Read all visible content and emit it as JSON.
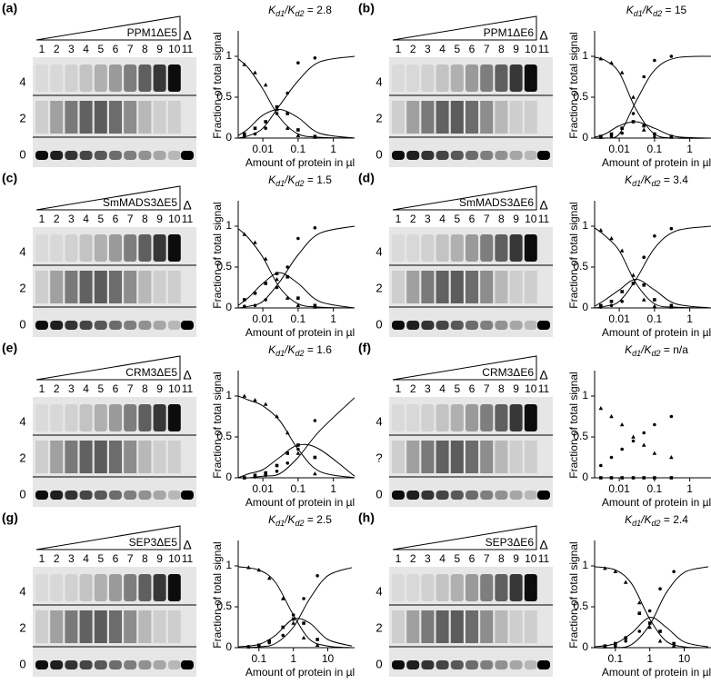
{
  "lanes": [
    "1",
    "2",
    "3",
    "4",
    "5",
    "6",
    "7",
    "8",
    "9",
    "10",
    "11"
  ],
  "delta": "Δ",
  "ylabel": "Fraction of total signal",
  "xlabel": "Amount of protein in µl",
  "ratio_parts": [
    "K",
    "d1",
    "/K",
    "d2",
    " = "
  ],
  "panels": [
    {
      "label": "(a)",
      "gel": {
        "protein": "PPM1ΔE5",
        "y_labels": [
          "4",
          "2",
          "0"
        ]
      },
      "chart": {
        "type": "scatter",
        "log_x": true,
        "ratio": "2.8",
        "xlim": [
          0.002,
          4
        ],
        "xticks": [
          0.01,
          0.1,
          1
        ],
        "ylim": [
          0,
          1.2
        ],
        "yticks": [
          0,
          0.5,
          1
        ],
        "x": [
          0.003,
          0.006,
          0.012,
          0.025,
          0.05,
          0.1,
          0.3
        ],
        "curve_x": [
          0.002,
          0.004,
          0.01,
          0.03,
          0.1,
          0.4,
          4
        ],
        "series": [
          {
            "marker": "triangle",
            "values": [
              0.9,
              0.8,
              0.65,
              0.35,
              0.12,
              0.03,
              0.01
            ],
            "curve": [
              0.97,
              0.85,
              0.6,
              0.25,
              0.05,
              0.01,
              0
            ]
          },
          {
            "marker": "square",
            "values": [
              0.05,
              0.12,
              0.2,
              0.38,
              0.3,
              0.1,
              0.02
            ],
            "curve": [
              0.03,
              0.12,
              0.28,
              0.35,
              0.25,
              0.06,
              0
            ]
          },
          {
            "marker": "circle",
            "values": [
              0.02,
              0.05,
              0.12,
              0.3,
              0.55,
              0.92,
              0.98
            ],
            "curve": [
              0,
              0.03,
              0.12,
              0.4,
              0.7,
              0.93,
              1
            ]
          }
        ]
      }
    },
    {
      "label": "(b)",
      "gel": {
        "protein": "PPM1ΔE6",
        "y_labels": [
          "4",
          "2",
          "0"
        ]
      },
      "chart": {
        "type": "scatter",
        "log_x": true,
        "ratio": "15",
        "xlim": [
          0.002,
          4
        ],
        "xticks": [
          0.01,
          0.1,
          1
        ],
        "ylim": [
          0,
          1.2
        ],
        "yticks": [
          0,
          0.5,
          1
        ],
        "x": [
          0.003,
          0.006,
          0.012,
          0.025,
          0.05,
          0.1,
          0.3
        ],
        "curve_x": [
          0.002,
          0.004,
          0.01,
          0.03,
          0.1,
          0.4,
          4
        ],
        "series": [
          {
            "marker": "triangle",
            "values": [
              0.97,
              0.92,
              0.8,
              0.5,
              0.1,
              0.02,
              0.01
            ],
            "curve": [
              0.99,
              0.95,
              0.8,
              0.35,
              0.05,
              0,
              0
            ]
          },
          {
            "marker": "square",
            "values": [
              0.02,
              0.05,
              0.12,
              0.2,
              0.15,
              0.05,
              0.02
            ],
            "curve": [
              0.01,
              0.05,
              0.15,
              0.2,
              0.12,
              0.02,
              0
            ]
          },
          {
            "marker": "circle",
            "values": [
              0.01,
              0.02,
              0.06,
              0.3,
              0.75,
              0.95,
              1
            ],
            "curve": [
              0,
              0,
              0.05,
              0.45,
              0.83,
              0.98,
              1
            ]
          }
        ]
      }
    },
    {
      "label": "(c)",
      "gel": {
        "protein": "SmMADS3ΔE5",
        "y_labels": [
          "4",
          "2",
          "0"
        ]
      },
      "chart": {
        "type": "scatter",
        "log_x": true,
        "ratio": "1.5",
        "xlim": [
          0.002,
          4
        ],
        "xticks": [
          0.01,
          0.1,
          1
        ],
        "ylim": [
          0,
          1.2
        ],
        "yticks": [
          0,
          0.5,
          1
        ],
        "x": [
          0.003,
          0.006,
          0.012,
          0.025,
          0.05,
          0.1,
          0.3
        ],
        "curve_x": [
          0.002,
          0.004,
          0.01,
          0.03,
          0.1,
          0.4,
          4
        ],
        "series": [
          {
            "marker": "triangle",
            "values": [
              0.9,
              0.8,
              0.6,
              0.35,
              0.12,
              0.03,
              0.01
            ],
            "curve": [
              0.97,
              0.85,
              0.62,
              0.25,
              0.05,
              0.01,
              0
            ]
          },
          {
            "marker": "square",
            "values": [
              0.1,
              0.18,
              0.3,
              0.42,
              0.38,
              0.12,
              0.03
            ],
            "curve": [
              0.03,
              0.13,
              0.3,
              0.43,
              0.3,
              0.08,
              0
            ]
          },
          {
            "marker": "circle",
            "values": [
              0.02,
              0.03,
              0.1,
              0.25,
              0.5,
              0.85,
              0.98
            ],
            "curve": [
              0,
              0.02,
              0.08,
              0.32,
              0.65,
              0.91,
              1
            ]
          }
        ]
      }
    },
    {
      "label": "(d)",
      "gel": {
        "protein": "SmMADS3ΔE6",
        "y_labels": [
          "4",
          "2",
          "0"
        ]
      },
      "chart": {
        "type": "scatter",
        "log_x": true,
        "ratio": "3.4",
        "xlim": [
          0.002,
          4
        ],
        "xticks": [
          0.01,
          0.1,
          1
        ],
        "ylim": [
          0,
          1.2
        ],
        "yticks": [
          0,
          0.5,
          1
        ],
        "x": [
          0.003,
          0.006,
          0.012,
          0.025,
          0.05,
          0.1,
          0.3
        ],
        "curve_x": [
          0.002,
          0.004,
          0.01,
          0.03,
          0.1,
          0.4,
          4
        ],
        "series": [
          {
            "marker": "triangle",
            "values": [
              0.95,
              0.85,
              0.7,
              0.4,
              0.1,
              0.02,
              0.01
            ],
            "curve": [
              0.98,
              0.88,
              0.7,
              0.3,
              0.05,
              0.01,
              0
            ]
          },
          {
            "marker": "square",
            "values": [
              0.03,
              0.08,
              0.2,
              0.3,
              0.28,
              0.1,
              0.03
            ],
            "curve": [
              0.02,
              0.1,
              0.22,
              0.35,
              0.22,
              0.05,
              0
            ]
          },
          {
            "marker": "circle",
            "values": [
              0.01,
              0.03,
              0.08,
              0.3,
              0.62,
              0.88,
              0.97
            ],
            "curve": [
              0,
              0.02,
              0.08,
              0.35,
              0.73,
              0.94,
              1
            ]
          }
        ]
      }
    },
    {
      "label": "(e)",
      "gel": {
        "protein": "CRM3ΔE5",
        "y_labels": [
          "4",
          "2",
          "0"
        ]
      },
      "chart": {
        "type": "scatter",
        "log_x": true,
        "ratio": "1.6",
        "xlim": [
          0.002,
          4
        ],
        "xticks": [
          0.01,
          0.1,
          1
        ],
        "ylim": [
          0,
          1.2
        ],
        "yticks": [
          0,
          0.5,
          1
        ],
        "x": [
          0.003,
          0.006,
          0.012,
          0.025,
          0.05,
          0.1,
          0.3
        ],
        "curve_x": [
          0.002,
          0.004,
          0.01,
          0.03,
          0.1,
          0.4,
          4
        ],
        "series": [
          {
            "marker": "triangle",
            "values": [
              1,
              0.95,
              0.9,
              0.75,
              0.55,
              0.3,
              0.05
            ],
            "curve": [
              1,
              0.95,
              0.88,
              0.7,
              0.35,
              0.08,
              0
            ]
          },
          {
            "marker": "square",
            "values": [
              0,
              0.03,
              0.06,
              0.15,
              0.3,
              0.4,
              0.25
            ],
            "curve": [
              0,
              0.05,
              0.1,
              0.25,
              0.4,
              0.35,
              0.02
            ]
          },
          {
            "marker": "circle",
            "values": [
              0,
              0.01,
              0.03,
              0.08,
              0.18,
              0.35,
              0.7
            ],
            "curve": [
              0,
              0,
              0.02,
              0.05,
              0.25,
              0.57,
              0.98
            ]
          }
        ]
      }
    },
    {
      "label": "(f)",
      "gel": {
        "protein": "CRM3ΔE6",
        "y_labels": [
          "4",
          "?",
          "0"
        ]
      },
      "chart": {
        "type": "scatter",
        "log_x": true,
        "ratio": "n/a",
        "xlim": [
          0.002,
          4
        ],
        "xticks": [
          0.01,
          0.1,
          1
        ],
        "ylim": [
          0,
          1.2
        ],
        "yticks": [
          0,
          0.5,
          1
        ],
        "x": [
          0.003,
          0.006,
          0.012,
          0.025,
          0.05,
          0.1,
          0.3
        ],
        "series": [
          {
            "marker": "triangle",
            "values": [
              0.85,
              0.75,
              0.65,
              0.5,
              0.4,
              0.3,
              0.25
            ]
          },
          {
            "marker": "square",
            "values": [
              0,
              0,
              0,
              0,
              0,
              0,
              0
            ]
          },
          {
            "marker": "circle",
            "values": [
              0.15,
              0.25,
              0.35,
              0.45,
              0.55,
              0.65,
              0.75
            ]
          }
        ]
      }
    },
    {
      "label": "(g)",
      "gel": {
        "protein": "SEP3ΔE5",
        "y_labels": [
          "4",
          "2",
          "0"
        ]
      },
      "chart": {
        "type": "scatter",
        "log_x": true,
        "ratio": "2.5",
        "xlim": [
          0.025,
          60
        ],
        "xticks": [
          0.1,
          1,
          10
        ],
        "ylim": [
          0,
          1.2
        ],
        "yticks": [
          0,
          0.5,
          1
        ],
        "x": [
          0.05,
          0.1,
          0.2,
          0.5,
          1,
          2,
          5
        ],
        "curve_x": [
          0.025,
          0.1,
          0.3,
          1,
          3,
          10,
          50
        ],
        "series": [
          {
            "marker": "triangle",
            "values": [
              0.98,
              0.95,
              0.85,
              0.6,
              0.3,
              0.12,
              0.03
            ],
            "curve": [
              0.99,
              0.95,
              0.8,
              0.4,
              0.1,
              0.02,
              0
            ]
          },
          {
            "marker": "square",
            "values": [
              0.01,
              0.03,
              0.08,
              0.25,
              0.35,
              0.3,
              0.1
            ],
            "curve": [
              0.01,
              0.04,
              0.15,
              0.35,
              0.3,
              0.1,
              0.02
            ]
          },
          {
            "marker": "circle",
            "values": [
              0.01,
              0.02,
              0.06,
              0.15,
              0.4,
              0.6,
              0.88
            ],
            "curve": [
              0,
              0.01,
              0.05,
              0.25,
              0.6,
              0.88,
              0.98
            ]
          }
        ]
      }
    },
    {
      "label": "(h)",
      "gel": {
        "protein": "SEP3ΔE6",
        "y_labels": [
          "4",
          "2",
          "0"
        ]
      },
      "chart": {
        "type": "scatter",
        "log_x": true,
        "ratio": "2.4",
        "xlim": [
          0.025,
          60
        ],
        "xticks": [
          0.1,
          1,
          10
        ],
        "ylim": [
          0,
          1.2
        ],
        "yticks": [
          0,
          0.5,
          1
        ],
        "x": [
          0.05,
          0.1,
          0.2,
          0.5,
          1,
          2,
          5
        ],
        "curve_x": [
          0.025,
          0.1,
          0.3,
          1,
          3,
          10,
          50
        ],
        "series": [
          {
            "marker": "triangle",
            "values": [
              0.97,
              0.93,
              0.8,
              0.55,
              0.25,
              0.08,
              0.02
            ],
            "curve": [
              0.99,
              0.95,
              0.78,
              0.35,
              0.08,
              0.01,
              0
            ]
          },
          {
            "marker": "square",
            "values": [
              0.02,
              0.05,
              0.12,
              0.42,
              0.3,
              0.2,
              0.05
            ],
            "curve": [
              0.01,
              0.05,
              0.18,
              0.37,
              0.25,
              0.07,
              0.01
            ]
          },
          {
            "marker": "circle",
            "values": [
              0.01,
              0.02,
              0.08,
              0.2,
              0.45,
              0.72,
              0.93
            ],
            "curve": [
              0,
              0,
              0.04,
              0.28,
              0.67,
              0.92,
              0.99
            ]
          }
        ]
      }
    }
  ]
}
